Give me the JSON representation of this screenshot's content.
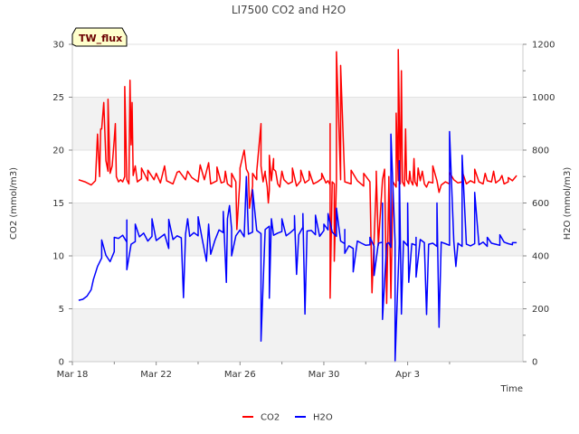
{
  "chart_data": {
    "type": "line",
    "title": "LI7500 CO2 and H2O",
    "badge": "TW_flux",
    "xlabel": "Time",
    "ylabel": "CO2 (mmol/m3)",
    "ylabel_right": "H2O (mmol/m3)",
    "ylim": [
      0,
      30
    ],
    "ylim_right": [
      0,
      1200
    ],
    "xlim": [
      0,
      21.5
    ],
    "x_unit": "days since Mar 18",
    "x_ticks": [
      {
        "value": 0,
        "label": "Mar 18"
      },
      {
        "value": 4,
        "label": "Mar 22"
      },
      {
        "value": 8,
        "label": "Mar 26"
      },
      {
        "value": 12,
        "label": "Mar 30"
      },
      {
        "value": 16,
        "label": "Apr 3"
      }
    ],
    "y_ticks": [
      {
        "value": 0,
        "label": "0"
      },
      {
        "value": 5,
        "label": "5"
      },
      {
        "value": 10,
        "label": "10"
      },
      {
        "value": 15,
        "label": "15"
      },
      {
        "value": 20,
        "label": "20"
      },
      {
        "value": 25,
        "label": "25"
      },
      {
        "value": 30,
        "label": "30"
      }
    ],
    "y_ticks_right": [
      {
        "value": 0,
        "label": "0"
      },
      {
        "value": 200,
        "label": "200"
      },
      {
        "value": 400,
        "label": "400"
      },
      {
        "value": 600,
        "label": "600"
      },
      {
        "value": 800,
        "label": "800"
      },
      {
        "value": 1000,
        "label": "1000"
      },
      {
        "value": 1200,
        "label": "1200"
      }
    ],
    "bands": [
      [
        0,
        5
      ],
      [
        10,
        15
      ],
      [
        20,
        25
      ]
    ],
    "legend": {
      "position": "bottom-center"
    },
    "series": [
      {
        "name": "CO2",
        "color": "#ff0000",
        "axis": "left",
        "x": [
          0.3,
          0.6,
          0.9,
          1.1,
          1.2,
          1.3,
          1.4,
          1.5,
          1.6,
          1.7,
          1.8,
          1.9,
          2.0,
          2.1,
          2.2,
          2.3,
          2.4,
          2.5,
          2.6,
          2.7,
          2.8,
          2.9,
          3.1,
          3.3,
          3.6,
          3.9,
          4.2,
          4.5,
          4.8,
          5.1,
          5.4,
          5.7,
          6.0,
          6.3,
          6.6,
          6.9,
          7.1,
          7.25,
          7.4,
          7.6,
          7.8,
          8.0,
          8.2,
          8.4,
          8.6,
          8.8,
          9.0,
          9.1,
          9.2,
          9.3,
          9.35,
          9.4,
          9.5,
          9.6,
          9.7,
          9.8,
          9.9,
          10.1,
          10.3,
          10.5,
          10.7,
          10.9,
          11.1,
          11.3,
          11.5,
          11.7,
          11.9,
          12.1,
          12.2,
          12.3,
          12.4,
          12.5,
          12.6,
          12.8,
          13.0,
          13.3,
          13.6,
          13.9,
          14.2,
          14.5,
          14.8,
          15.1,
          15.3,
          15.45,
          15.55,
          15.65,
          15.75,
          15.85,
          15.95,
          16.05,
          16.15,
          16.25,
          16.35,
          16.45,
          16.6,
          16.8,
          17.0,
          17.2,
          17.4,
          17.6,
          17.8,
          18.0,
          18.2,
          18.4,
          18.6,
          18.8,
          19.0,
          19.2,
          19.4,
          19.6,
          19.8,
          20.0,
          20.2,
          20.4,
          20.6,
          20.8,
          21.0,
          21.2
        ],
        "values": [
          17.2,
          17.0,
          16.7,
          17.1,
          21.5,
          17.5,
          22.0,
          24.5,
          19.0,
          18.0,
          17.8,
          18.5,
          21.0,
          17.5,
          17.0,
          17.2,
          17.0,
          17.5,
          17.2,
          16.8,
          20.5,
          17.6,
          17.0,
          17.3,
          17.1,
          17.2,
          16.9,
          17.1,
          16.8,
          18.0,
          17.2,
          17.4,
          17.0,
          17.2,
          16.8,
          17.1,
          16.9,
          17.0,
          16.8,
          16.5,
          17.0,
          17.3,
          20.0,
          17.8,
          16.6,
          17.2,
          22.5,
          17.0,
          18.0,
          16.5,
          15.0,
          16.2,
          17.1,
          19.2,
          18.0,
          16.8,
          16.5,
          17.2,
          16.8,
          17.0,
          16.6,
          17.1,
          16.9,
          17.2,
          16.8,
          17.0,
          17.3,
          16.9,
          17.1,
          16.7,
          17.0,
          16.8,
          17.1,
          17.2,
          17.0,
          16.8,
          17.1,
          16.6,
          17.0,
          16.8,
          17.2,
          16.9,
          17.0,
          16.5,
          17.1,
          16.8,
          17.0,
          16.6,
          17.2,
          16.8,
          17.1,
          16.7,
          17.0,
          16.6,
          17.1,
          16.8,
          17.0,
          16.9,
          17.1,
          16.7,
          17.0,
          16.8,
          17.2,
          16.9,
          17.0,
          16.8,
          17.1,
          16.9,
          17.0,
          16.8,
          17.1,
          17.0,
          16.9,
          17.2,
          16.8,
          17.0,
          17.1,
          17.6
        ],
        "peak_x": [
          1.35,
          1.7,
          2.05,
          2.5,
          2.75,
          2.85,
          3.0,
          3.3,
          3.6,
          4.0,
          4.4,
          5.0,
          5.5,
          6.1,
          6.5,
          6.9,
          7.3,
          7.6,
          8.0,
          8.3,
          8.6,
          8.8,
          9.0,
          9.2,
          9.4,
          9.6,
          10.0,
          10.5,
          10.9,
          11.3,
          11.9,
          12.3,
          12.6,
          12.8,
          13.3,
          13.9,
          14.5,
          14.9,
          15.1,
          15.3,
          15.45,
          15.55,
          15.7,
          15.9,
          16.1,
          16.3,
          16.5,
          16.7,
          16.9,
          17.2,
          17.5,
          18.0,
          18.6,
          19.2,
          19.7,
          20.1,
          20.5,
          20.8
        ],
        "peak_y": [
          22.0,
          24.8,
          22.5,
          26.0,
          26.6,
          24.5,
          18.5,
          18.3,
          18.1,
          17.8,
          18.5,
          17.9,
          18.0,
          18.6,
          18.8,
          18.4,
          18.0,
          17.8,
          18.3,
          18.2,
          17.8,
          18.0,
          18.5,
          17.8,
          19.5,
          18.2,
          18.0,
          18.3,
          18.1,
          18.0,
          17.8,
          22.5,
          29.3,
          28.0,
          18.1,
          17.8,
          18.0,
          18.2,
          17.5,
          17.0,
          23.5,
          29.5,
          27.5,
          22.0,
          18.0,
          19.2,
          18.3,
          18.0,
          16.5,
          18.5,
          16.0,
          17.9,
          18.0,
          18.2,
          17.8,
          18.0,
          17.6,
          17.4
        ],
        "dip_x": [
          7.85,
          8.45,
          12.3,
          12.5,
          14.3,
          14.6,
          15.0,
          15.2
        ],
        "dip_y": [
          12.5,
          14.5,
          6.0,
          9.5,
          6.5,
          11.0,
          5.5,
          6.0
        ]
      },
      {
        "name": "H2O",
        "color": "#0000ff",
        "axis": "right",
        "x": [
          0.3,
          0.5,
          0.7,
          0.9,
          1.0,
          1.2,
          1.4,
          1.6,
          1.8,
          2.0,
          2.2,
          2.4,
          2.6,
          2.8,
          3.0,
          3.2,
          3.4,
          3.6,
          3.8,
          4.0,
          4.2,
          4.4,
          4.6,
          4.8,
          5.0,
          5.2,
          5.4,
          5.6,
          5.8,
          6.0,
          6.2,
          6.4,
          6.6,
          6.8,
          7.0,
          7.2,
          7.4,
          7.6,
          7.8,
          8.0,
          8.2,
          8.4,
          8.6,
          8.8,
          9.0,
          9.2,
          9.4,
          9.6,
          9.8,
          10.0,
          10.2,
          10.4,
          10.6,
          10.8,
          11.0,
          11.2,
          11.4,
          11.6,
          11.8,
          12.0,
          12.2,
          12.4,
          12.6,
          12.8,
          13.0,
          13.2,
          13.4,
          13.6,
          13.8,
          14.0,
          14.2,
          14.4,
          14.6,
          14.8,
          15.0,
          15.2,
          15.4,
          15.6,
          15.8,
          16.0,
          16.2,
          16.4,
          16.6,
          16.8,
          17.0,
          17.2,
          17.4,
          17.6,
          17.8,
          18.0,
          18.2,
          18.4,
          18.6,
          18.8,
          19.0,
          19.2,
          19.4,
          19.6,
          19.8,
          20.0,
          20.2,
          20.4,
          20.6,
          20.8,
          21.0,
          21.2
        ],
        "values": [
          232,
          236,
          248,
          272,
          310,
          360,
          392,
          402,
          378,
          416,
          466,
          478,
          452,
          444,
          454,
          472,
          486,
          456,
          474,
          458,
          470,
          482,
          428,
          462,
          476,
          468,
          482,
          474,
          488,
          476,
          462,
          380,
          406,
          458,
          498,
          488,
          540,
          502,
          476,
          498,
          472,
          482,
          490,
          496,
          484,
          500,
          512,
          478,
          486,
          492,
          476,
          488,
          502,
          480,
          508,
          494,
          496,
          480,
          474,
          496,
          498,
          490,
          474,
          456,
          446,
          438,
          428,
          456,
          448,
          440,
          442,
          436,
          448,
          452,
          446,
          432,
          452,
          444,
          456,
          438,
          446,
          440,
          462,
          450,
          444,
          448,
          436,
          452,
          446,
          440,
          456,
          448,
          436,
          444,
          438,
          446,
          442,
          452,
          436,
          448,
          444,
          440,
          452,
          446,
          442,
          450
        ],
        "peak_x": [
          1.4,
          2.0,
          2.6,
          3.0,
          3.8,
          4.6,
          5.5,
          6.0,
          6.5,
          7.2,
          7.5,
          8.3,
          8.6,
          9.5,
          10.0,
          10.6,
          11.0,
          11.6,
          12.0,
          12.2,
          12.6,
          13.0,
          14.2,
          14.8,
          15.2,
          15.6,
          16.0,
          16.4,
          16.8,
          17.4,
          18.0,
          18.6,
          19.2,
          19.8,
          20.4,
          21.0
        ],
        "peak_y": [
          460,
          470,
          536,
          520,
          540,
          538,
          540,
          548,
          520,
          568,
          590,
          700,
          650,
          540,
          540,
          552,
          560,
          554,
          520,
          560,
          580,
          500,
          470,
          600,
          860,
          760,
          600,
          470,
          440,
          600,
          870,
          780,
          640,
          470,
          480,
          450
        ],
        "dip_x": [
          2.6,
          5.3,
          7.35,
          7.6,
          9.0,
          9.4,
          10.7,
          11.1,
          13.0,
          13.4,
          14.4,
          14.8,
          15.1,
          15.4,
          15.7,
          16.05,
          16.4,
          16.9,
          17.5,
          18.3
        ],
        "dip_y": [
          348,
          242,
          300,
          400,
          78,
          240,
          330,
          180,
          410,
          340,
          326,
          160,
          450,
          0,
          180,
          300,
          320,
          178,
          130,
          360
        ]
      }
    ]
  }
}
